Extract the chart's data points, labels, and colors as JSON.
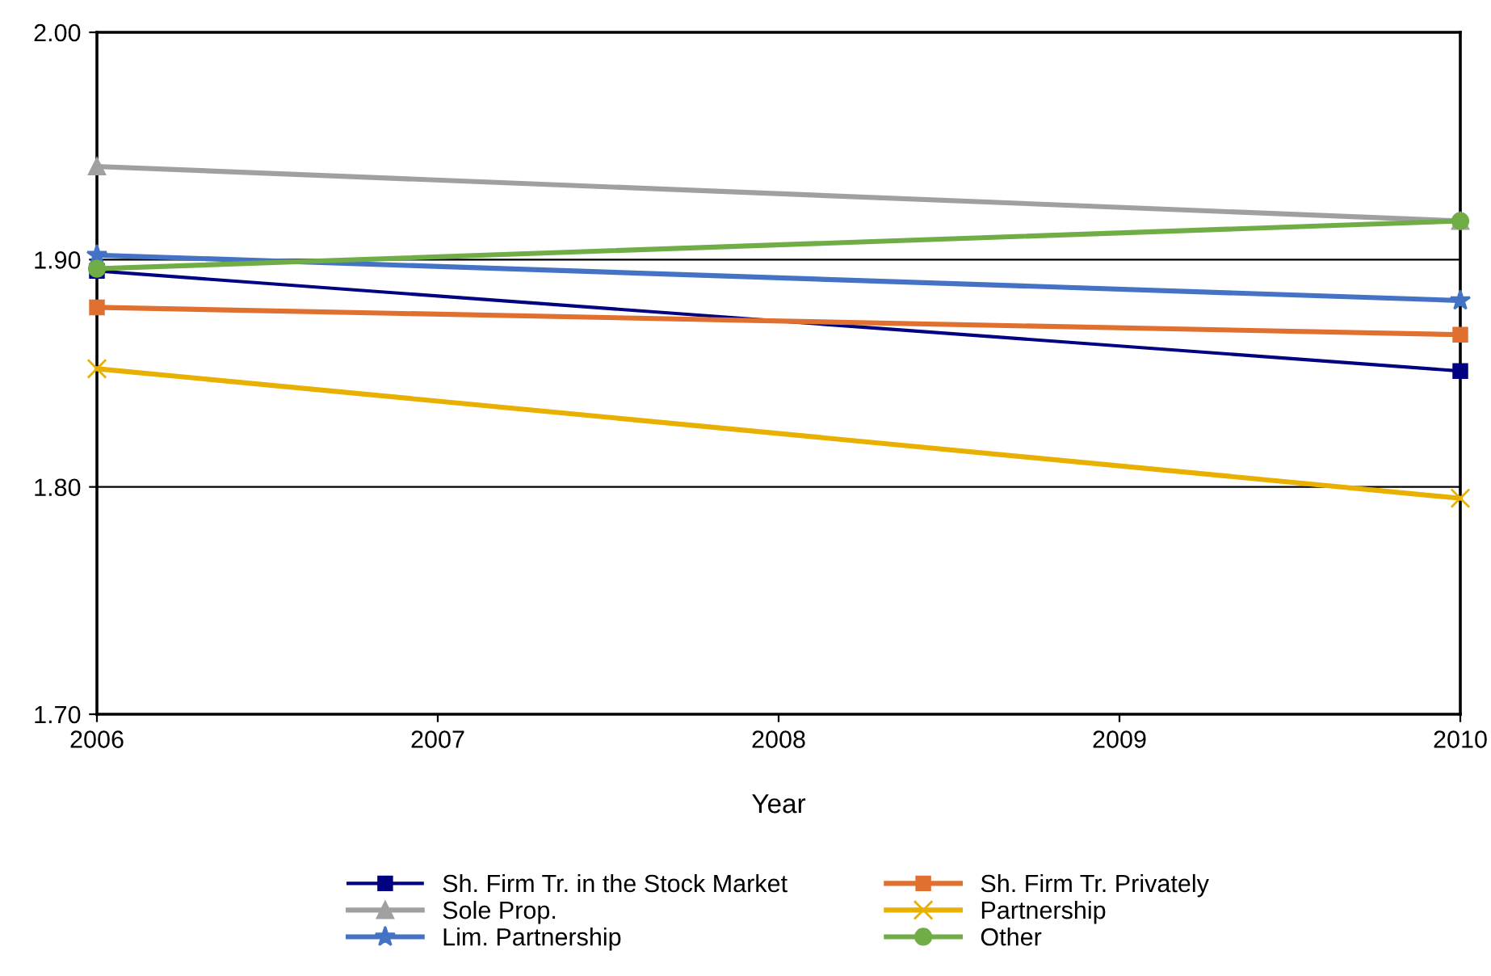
{
  "chart_data": {
    "type": "line",
    "xlabel": "Year",
    "x": [
      2006,
      2010
    ],
    "xlim": [
      2006,
      2010
    ],
    "xticks": [
      2006,
      2007,
      2008,
      2009,
      2010
    ],
    "ylim": [
      1.7,
      2.0
    ],
    "yticks": [
      {
        "value": 1.7,
        "label": "1.70"
      },
      {
        "value": 1.8,
        "label": "1.80"
      },
      {
        "value": 1.9,
        "label": "1.90"
      },
      {
        "value": 2.0,
        "label": "2.00"
      }
    ],
    "grid": "y",
    "legend": "bottom",
    "series": [
      {
        "name": "Sh. Firm Tr. in the Stock Market",
        "color": "#000080",
        "marker": "square",
        "values": [
          1.895,
          1.851
        ]
      },
      {
        "name": "Sh. Firm Tr. Privately",
        "color": "#e07030",
        "marker": "square",
        "values": [
          1.879,
          1.867
        ]
      },
      {
        "name": "Sole Prop.",
        "color": "#a0a0a0",
        "marker": "triangle",
        "values": [
          1.941,
          1.917
        ]
      },
      {
        "name": "Partnership",
        "color": "#e8b000",
        "marker": "cross",
        "values": [
          1.852,
          1.795
        ]
      },
      {
        "name": "Lim. Partnership",
        "color": "#4472c4",
        "marker": "star",
        "values": [
          1.902,
          1.882
        ]
      },
      {
        "name": "Other",
        "color": "#70ad47",
        "marker": "circle",
        "values": [
          1.896,
          1.917
        ]
      }
    ]
  }
}
